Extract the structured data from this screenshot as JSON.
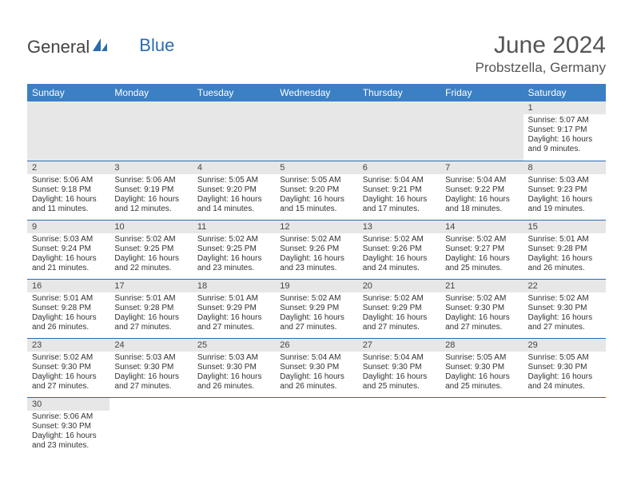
{
  "brand": {
    "part1": "General",
    "part2": "Blue",
    "sail_color": "#2a6bb0"
  },
  "title": "June 2024",
  "location": "Probstzella, Germany",
  "header_bg": "#3b7fc4",
  "header_fg": "#ffffff",
  "divider_color": "#2a6bb0",
  "dayhead_bg": "#e7e7e7",
  "weekdays": [
    "Sunday",
    "Monday",
    "Tuesday",
    "Wednesday",
    "Thursday",
    "Friday",
    "Saturday"
  ],
  "labels": {
    "sunrise": "Sunrise:",
    "sunset": "Sunset:",
    "daylight_prefix": "Daylight:"
  },
  "days": {
    "d1": {
      "n": "1",
      "sr": "5:07 AM",
      "ss": "9:17 PM",
      "dl": "16 hours and 9 minutes."
    },
    "d2": {
      "n": "2",
      "sr": "5:06 AM",
      "ss": "9:18 PM",
      "dl": "16 hours and 11 minutes."
    },
    "d3": {
      "n": "3",
      "sr": "5:06 AM",
      "ss": "9:19 PM",
      "dl": "16 hours and 12 minutes."
    },
    "d4": {
      "n": "4",
      "sr": "5:05 AM",
      "ss": "9:20 PM",
      "dl": "16 hours and 14 minutes."
    },
    "d5": {
      "n": "5",
      "sr": "5:05 AM",
      "ss": "9:20 PM",
      "dl": "16 hours and 15 minutes."
    },
    "d6": {
      "n": "6",
      "sr": "5:04 AM",
      "ss": "9:21 PM",
      "dl": "16 hours and 17 minutes."
    },
    "d7": {
      "n": "7",
      "sr": "5:04 AM",
      "ss": "9:22 PM",
      "dl": "16 hours and 18 minutes."
    },
    "d8": {
      "n": "8",
      "sr": "5:03 AM",
      "ss": "9:23 PM",
      "dl": "16 hours and 19 minutes."
    },
    "d9": {
      "n": "9",
      "sr": "5:03 AM",
      "ss": "9:24 PM",
      "dl": "16 hours and 21 minutes."
    },
    "d10": {
      "n": "10",
      "sr": "5:02 AM",
      "ss": "9:25 PM",
      "dl": "16 hours and 22 minutes."
    },
    "d11": {
      "n": "11",
      "sr": "5:02 AM",
      "ss": "9:25 PM",
      "dl": "16 hours and 23 minutes."
    },
    "d12": {
      "n": "12",
      "sr": "5:02 AM",
      "ss": "9:26 PM",
      "dl": "16 hours and 23 minutes."
    },
    "d13": {
      "n": "13",
      "sr": "5:02 AM",
      "ss": "9:26 PM",
      "dl": "16 hours and 24 minutes."
    },
    "d14": {
      "n": "14",
      "sr": "5:02 AM",
      "ss": "9:27 PM",
      "dl": "16 hours and 25 minutes."
    },
    "d15": {
      "n": "15",
      "sr": "5:01 AM",
      "ss": "9:28 PM",
      "dl": "16 hours and 26 minutes."
    },
    "d16": {
      "n": "16",
      "sr": "5:01 AM",
      "ss": "9:28 PM",
      "dl": "16 hours and 26 minutes."
    },
    "d17": {
      "n": "17",
      "sr": "5:01 AM",
      "ss": "9:28 PM",
      "dl": "16 hours and 27 minutes."
    },
    "d18": {
      "n": "18",
      "sr": "5:01 AM",
      "ss": "9:29 PM",
      "dl": "16 hours and 27 minutes."
    },
    "d19": {
      "n": "19",
      "sr": "5:02 AM",
      "ss": "9:29 PM",
      "dl": "16 hours and 27 minutes."
    },
    "d20": {
      "n": "20",
      "sr": "5:02 AM",
      "ss": "9:29 PM",
      "dl": "16 hours and 27 minutes."
    },
    "d21": {
      "n": "21",
      "sr": "5:02 AM",
      "ss": "9:30 PM",
      "dl": "16 hours and 27 minutes."
    },
    "d22": {
      "n": "22",
      "sr": "5:02 AM",
      "ss": "9:30 PM",
      "dl": "16 hours and 27 minutes."
    },
    "d23": {
      "n": "23",
      "sr": "5:02 AM",
      "ss": "9:30 PM",
      "dl": "16 hours and 27 minutes."
    },
    "d24": {
      "n": "24",
      "sr": "5:03 AM",
      "ss": "9:30 PM",
      "dl": "16 hours and 27 minutes."
    },
    "d25": {
      "n": "25",
      "sr": "5:03 AM",
      "ss": "9:30 PM",
      "dl": "16 hours and 26 minutes."
    },
    "d26": {
      "n": "26",
      "sr": "5:04 AM",
      "ss": "9:30 PM",
      "dl": "16 hours and 26 minutes."
    },
    "d27": {
      "n": "27",
      "sr": "5:04 AM",
      "ss": "9:30 PM",
      "dl": "16 hours and 25 minutes."
    },
    "d28": {
      "n": "28",
      "sr": "5:05 AM",
      "ss": "9:30 PM",
      "dl": "16 hours and 25 minutes."
    },
    "d29": {
      "n": "29",
      "sr": "5:05 AM",
      "ss": "9:30 PM",
      "dl": "16 hours and 24 minutes."
    },
    "d30": {
      "n": "30",
      "sr": "5:06 AM",
      "ss": "9:30 PM",
      "dl": "16 hours and 23 minutes."
    }
  },
  "grid": [
    [
      null,
      null,
      null,
      null,
      null,
      null,
      "d1"
    ],
    [
      "d2",
      "d3",
      "d4",
      "d5",
      "d6",
      "d7",
      "d8"
    ],
    [
      "d9",
      "d10",
      "d11",
      "d12",
      "d13",
      "d14",
      "d15"
    ],
    [
      "d16",
      "d17",
      "d18",
      "d19",
      "d20",
      "d21",
      "d22"
    ],
    [
      "d23",
      "d24",
      "d25",
      "d26",
      "d27",
      "d28",
      "d29"
    ],
    [
      "d30",
      null,
      null,
      null,
      null,
      null,
      null
    ]
  ]
}
